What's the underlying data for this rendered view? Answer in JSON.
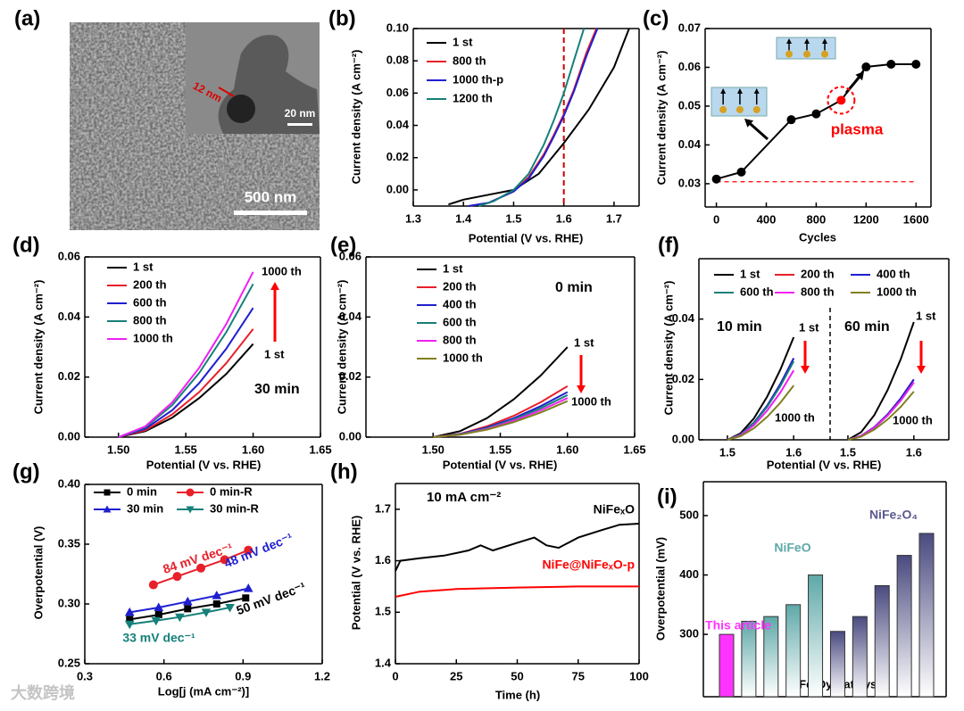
{
  "image_panel": {
    "panel_label": "(a)",
    "scale_bar": "500 nm",
    "inset_scale_bar": "20 nm",
    "inset_size": "12 nm"
  },
  "watermark": "大数跨境",
  "chart_data": [
    {
      "type": "line",
      "panel_label": "(b)",
      "x_label": "Potential (V vs. RHE)",
      "y_label": "Current density (A cm⁻²)",
      "xlim": [
        1.3,
        1.75
      ],
      "xticks": [
        1.3,
        1.4,
        1.5,
        1.6,
        1.7
      ],
      "ylim": [
        -0.01,
        0.1
      ],
      "yticks": [
        {
          "value": 0,
          "label": "0.00"
        },
        0.02,
        0.04,
        0.06,
        0.08,
        {
          "value": 0.1,
          "label": "0.10"
        }
      ],
      "vline": 1.6,
      "series": [
        {
          "name": "1 st",
          "color": "#000000",
          "x": [
            1.37,
            1.4,
            1.45,
            1.5,
            1.55,
            1.6,
            1.65,
            1.7,
            1.73
          ],
          "values": [
            -0.009,
            -0.006,
            -0.003,
            0,
            0.01,
            0.029,
            0.05,
            0.076,
            0.1
          ]
        },
        {
          "name": "800 th",
          "color": "#e8202a",
          "x": [
            1.41,
            1.45,
            1.5,
            1.53,
            1.56,
            1.58,
            1.6,
            1.62,
            1.645,
            1.665
          ],
          "values": [
            -0.01,
            -0.008,
            -0.001,
            0.008,
            0.022,
            0.034,
            0.047,
            0.062,
            0.085,
            0.1
          ]
        },
        {
          "name": "1000 th-p",
          "color": "#1f1fd0",
          "x": [
            1.41,
            1.45,
            1.5,
            1.53,
            1.56,
            1.58,
            1.6,
            1.62,
            1.645,
            1.667
          ],
          "values": [
            -0.01,
            -0.008,
            -0.001,
            0.007,
            0.021,
            0.033,
            0.046,
            0.061,
            0.083,
            0.1
          ]
        },
        {
          "name": "1200 th",
          "color": "#16807a",
          "x": [
            1.43,
            1.46,
            1.5,
            1.53,
            1.56,
            1.58,
            1.6,
            1.62,
            1.64
          ],
          "values": [
            -0.01,
            -0.007,
            0,
            0.01,
            0.028,
            0.043,
            0.06,
            0.08,
            0.1
          ]
        }
      ]
    },
    {
      "type": "line",
      "panel_label": "(c)",
      "x_label": "Cycles",
      "y_label": "Current density (A cm⁻²)",
      "xlim": [
        -90,
        1720
      ],
      "xticks": [
        0,
        400,
        800,
        1200,
        1600
      ],
      "ylim": [
        0.024,
        0.07
      ],
      "yticks": [
        0.03,
        0.04,
        0.05,
        0.06,
        0.07
      ],
      "hline": 0.0305,
      "annotations": [
        "plasma"
      ],
      "series": [
        {
          "color": "#000000",
          "marker": "circle",
          "x": [
            0,
            200,
            600,
            800,
            1000,
            1200,
            1400,
            1600
          ],
          "values": [
            0.0312,
            0.033,
            0.0465,
            0.048,
            0.0515,
            0.0601,
            0.0608,
            0.0608
          ],
          "point_colors": [
            "#000000",
            "#000000",
            "#000000",
            "#000000",
            "#ff0000",
            "#000000",
            "#000000",
            "#000000"
          ]
        }
      ]
    },
    {
      "type": "line",
      "panel_label": "(d)",
      "x_label": "Potential (V vs. RHE)",
      "y_label": "Current density (A cm⁻²)",
      "xlim": [
        1.475,
        1.65
      ],
      "xticks": [
        {
          "value": 1.5,
          "label": "1.50"
        },
        1.55,
        {
          "value": 1.6,
          "label": "1.60"
        },
        1.65
      ],
      "ylim": [
        0,
        0.06
      ],
      "yticks": [
        {
          "value": 0,
          "label": "0.00"
        },
        0.02,
        0.04,
        0.06
      ],
      "annotations": [
        "1000 th",
        "1 st",
        "30 min"
      ],
      "x": [
        1.5,
        1.52,
        1.54,
        1.56,
        1.58,
        1.6
      ],
      "series": [
        {
          "name": "1 st",
          "color": "#000000",
          "values": [
            0,
            0.002,
            0.0065,
            0.013,
            0.021,
            0.031
          ]
        },
        {
          "name": "200 th",
          "color": "#e8202a",
          "values": [
            0,
            0.0023,
            0.0076,
            0.015,
            0.0246,
            0.036
          ]
        },
        {
          "name": "600 th",
          "color": "#1f1fd0",
          "values": [
            0,
            0.0028,
            0.009,
            0.018,
            0.0294,
            0.043
          ]
        },
        {
          "name": "800 th",
          "color": "#16807a",
          "values": [
            0,
            0.0033,
            0.0107,
            0.0214,
            0.0349,
            0.051
          ]
        },
        {
          "name": "1000 th",
          "color": "#f020f0",
          "values": [
            0,
            0.0036,
            0.0116,
            0.0231,
            0.0376,
            0.055
          ]
        }
      ]
    },
    {
      "type": "line",
      "panel_label": "(e)",
      "x_label": "Potential (V vs. RHE)",
      "y_label": "Current density (A cm⁻²)",
      "xlim": [
        1.45,
        1.65
      ],
      "xticks": [
        {
          "value": 1.5,
          "label": "1.50"
        },
        1.55,
        {
          "value": 1.6,
          "label": "1.60"
        },
        1.65
      ],
      "ylim": [
        0,
        0.06
      ],
      "yticks": [
        {
          "value": 0,
          "label": "0.00"
        },
        0.02,
        0.04,
        0.06
      ],
      "annotations": [
        "0 min",
        "1 st",
        "1000 th"
      ],
      "x": [
        1.5,
        1.52,
        1.54,
        1.56,
        1.58,
        1.6
      ],
      "series": [
        {
          "name": "1 st",
          "color": "#000000",
          "values": [
            0,
            0.002,
            0.0063,
            0.0126,
            0.0205,
            0.03
          ]
        },
        {
          "name": "200 th",
          "color": "#e8202a",
          "values": [
            0,
            0.0011,
            0.0036,
            0.0071,
            0.0116,
            0.017
          ]
        },
        {
          "name": "400 th",
          "color": "#1f1fd0",
          "values": [
            0,
            0.001,
            0.0032,
            0.0063,
            0.0103,
            0.015
          ]
        },
        {
          "name": "600 th",
          "color": "#16807a",
          "values": [
            0,
            0.0009,
            0.0029,
            0.0059,
            0.0096,
            0.014
          ]
        },
        {
          "name": "800 th",
          "color": "#f020f0",
          "values": [
            0,
            0.0008,
            0.0027,
            0.0055,
            0.0089,
            0.013
          ]
        },
        {
          "name": "1000 th",
          "color": "#808020",
          "values": [
            0,
            0.0008,
            0.0025,
            0.005,
            0.0082,
            0.012
          ]
        }
      ]
    },
    {
      "type": "line",
      "panel_label": "(f)",
      "x_label": "Potential (V vs. RHE)",
      "y_label": "Current density (A cm⁻²)",
      "xlim": [
        1.457,
        1.655
      ],
      "xticks": [
        1.5,
        1.6
      ],
      "ylim": [
        0,
        0.06
      ],
      "yticks": [
        {
          "value": 0,
          "label": "0.00"
        },
        0.02,
        0.04
      ],
      "annotations": [
        "10 min",
        "1 st",
        "1000 th"
      ],
      "x": [
        1.5,
        1.52,
        1.54,
        1.56,
        1.58,
        1.6
      ],
      "series": [
        {
          "name": "1 st",
          "color": "#000000",
          "values": [
            0,
            0.0022,
            0.0071,
            0.0143,
            0.0233,
            0.034
          ]
        },
        {
          "name": "200 th",
          "color": "#e8202a",
          "values": [
            0,
            0.0018,
            0.0057,
            0.0113,
            0.0185,
            0.027
          ]
        },
        {
          "name": "400 th",
          "color": "#1f1fd0",
          "values": [
            0,
            0.0018,
            0.0057,
            0.0113,
            0.0185,
            0.027
          ]
        },
        {
          "name": "600 th",
          "color": "#16807a",
          "values": [
            0,
            0.0017,
            0.0055,
            0.0109,
            0.0178,
            0.026
          ]
        },
        {
          "name": "800 th",
          "color": "#f020f0",
          "values": [
            0,
            0.0015,
            0.0048,
            0.0097,
            0.0157,
            0.023
          ]
        },
        {
          "name": "1000 th",
          "color": "#808020",
          "values": [
            0,
            0.0012,
            0.0038,
            0.0076,
            0.0123,
            0.018
          ]
        }
      ]
    },
    {
      "type": "line",
      "xlim": [
        1.473,
        1.653
      ],
      "xticks": [
        1.5,
        1.6
      ],
      "ylim": [
        0,
        0.06
      ],
      "annotations": [
        "60 min",
        "1 st",
        "1000 th"
      ],
      "x": [
        1.5,
        1.52,
        1.54,
        1.56,
        1.58,
        1.6
      ],
      "series": [
        {
          "color": "#000000",
          "values": [
            0,
            0.0025,
            0.0082,
            0.0164,
            0.0267,
            0.039
          ]
        },
        {
          "color": "#e8202a",
          "values": [
            0,
            0.0013,
            0.0042,
            0.0084,
            0.0137,
            0.02
          ]
        },
        {
          "color": "#1f1fd0",
          "values": [
            0,
            0.0013,
            0.0042,
            0.0084,
            0.0137,
            0.02
          ]
        },
        {
          "color": "#16807a",
          "values": [
            0,
            0.0012,
            0.004,
            0.008,
            0.013,
            0.019
          ]
        },
        {
          "color": "#f020f0",
          "values": [
            0,
            0.0012,
            0.004,
            0.008,
            0.013,
            0.019
          ]
        },
        {
          "color": "#808020",
          "values": [
            0,
            0.001,
            0.0034,
            0.0067,
            0.0109,
            0.016
          ]
        }
      ]
    },
    {
      "type": "line",
      "panel_label": "(g)",
      "x_label": "Log[j (mA cm⁻²)]",
      "y_label": "Overpotential (V)",
      "xlim": [
        0.3,
        1.2
      ],
      "xticks": [
        0.3,
        0.6,
        0.9,
        1.2
      ],
      "ylim": [
        0.25,
        0.4
      ],
      "yticks": [
        0.25,
        {
          "value": 0.3,
          "label": "0.30"
        },
        0.35,
        {
          "value": 0.4,
          "label": "0.40"
        }
      ],
      "annotations": [
        "84 mV dec⁻¹",
        "48 mV dec⁻¹",
        "50 mV dec⁻¹",
        "33 mV dec⁻¹"
      ],
      "series": [
        {
          "name": "0 min",
          "color": "#000000",
          "marker": "square",
          "x": [
            0.47,
            0.58,
            0.69,
            0.8,
            0.91
          ],
          "values": [
            0.287,
            0.291,
            0.296,
            0.3,
            0.305
          ]
        },
        {
          "name": "0 min-R",
          "color": "#e8202a",
          "marker": "circle",
          "x": [
            0.56,
            0.65,
            0.74,
            0.83,
            0.92
          ],
          "values": [
            0.316,
            0.323,
            0.33,
            0.337,
            0.345
          ]
        },
        {
          "name": "30 min",
          "color": "#1f1fd0",
          "marker": "triangle-up",
          "x": [
            0.47,
            0.58,
            0.69,
            0.8,
            0.92
          ],
          "values": [
            0.293,
            0.297,
            0.302,
            0.307,
            0.313
          ]
        },
        {
          "name": "30 min-R",
          "color": "#16807a",
          "marker": "triangle-down",
          "x": [
            0.47,
            0.57,
            0.66,
            0.76,
            0.85
          ],
          "values": [
            0.283,
            0.286,
            0.289,
            0.293,
            0.297
          ]
        }
      ]
    },
    {
      "type": "line",
      "panel_label": "(h)",
      "x_label": "Time (h)",
      "y_label": "Potential (V vs. RHE)",
      "xlim": [
        0,
        100
      ],
      "xticks": [
        0,
        25,
        50,
        75,
        100
      ],
      "ylim": [
        1.4,
        1.75
      ],
      "yticks": [
        1.4,
        1.5,
        1.6,
        1.7
      ],
      "annotations": [
        "10 mA cm⁻²"
      ],
      "series": [
        {
          "name": "NiFeₓO",
          "color": "#000000",
          "x": [
            0,
            2,
            10,
            20,
            30,
            35,
            40,
            50,
            57,
            62,
            67,
            75,
            85,
            92,
            100
          ],
          "values": [
            1.58,
            1.6,
            1.605,
            1.61,
            1.62,
            1.63,
            1.62,
            1.635,
            1.645,
            1.63,
            1.625,
            1.645,
            1.66,
            1.67,
            1.672
          ]
        },
        {
          "name": "NiFe@NiFeₓO-p",
          "color": "#ff0000",
          "x": [
            0,
            10,
            25,
            50,
            75,
            100
          ],
          "values": [
            1.53,
            1.54,
            1.545,
            1.548,
            1.55,
            1.55
          ]
        }
      ]
    },
    {
      "type": "bar",
      "panel_label": "(i)",
      "x_label": "NiFeₓOy Catalysts",
      "y_label": "Overpotential (mV)",
      "ylim": [
        195,
        557
      ],
      "yticks": [
        300,
        400,
        500
      ],
      "categories": [
        null,
        null,
        null,
        null,
        null,
        null,
        null,
        null,
        null,
        null
      ],
      "values": [
        300,
        322,
        330,
        350,
        400,
        305,
        330,
        382,
        433,
        470
      ],
      "colors": [
        "#ff33ff",
        "#5fa8a8",
        "#5fa8a8",
        "#5fa8a8",
        "#5fa8a8",
        "#4a4a80",
        "#4a4a80",
        "#4a4a80",
        "#4a4a80",
        "#4a4a80"
      ],
      "annotations": [
        "This article",
        "NiFeO",
        "NiFe₂O₄"
      ]
    }
  ]
}
